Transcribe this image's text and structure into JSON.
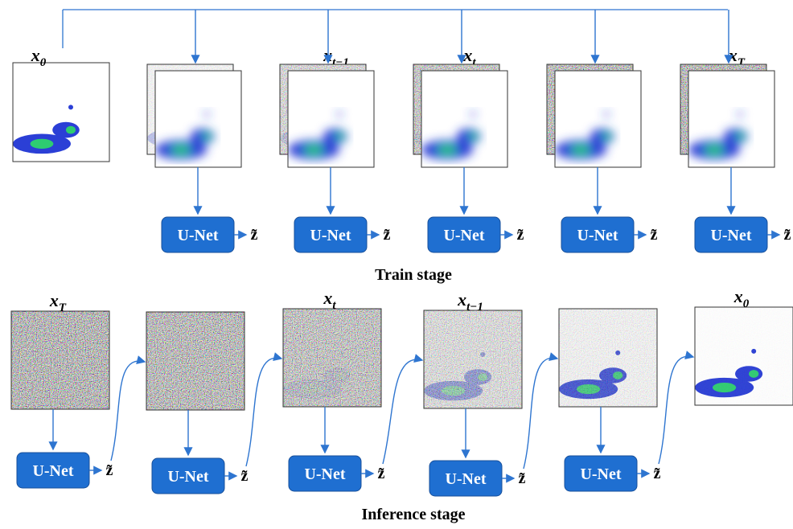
{
  "train": {
    "stage_label": "Train stage",
    "image_labels": [
      {
        "symbol": "x",
        "subscript": "0"
      },
      null,
      {
        "symbol": "x",
        "subscript": "t−1"
      },
      {
        "symbol": "x",
        "subscript": "t"
      },
      null,
      {
        "symbol": "x",
        "subscript": "T"
      }
    ],
    "units": [
      {
        "name": "U-Net",
        "output": "z̃"
      },
      {
        "name": "U-Net",
        "output": "z̃"
      },
      {
        "name": "U-Net",
        "output": "z̃"
      },
      {
        "name": "U-Net",
        "output": "z̃"
      },
      {
        "name": "U-Net",
        "output": "z̃"
      }
    ]
  },
  "inference": {
    "stage_label": "Inference stage",
    "image_labels": [
      {
        "symbol": "x",
        "subscript": "T"
      },
      null,
      {
        "symbol": "x",
        "subscript": "t"
      },
      {
        "symbol": "x",
        "subscript": "t−1"
      },
      null,
      {
        "symbol": "x",
        "subscript": "0"
      }
    ],
    "units": [
      {
        "name": "U-Net",
        "output": "z̃"
      },
      {
        "name": "U-Net",
        "output": "z̃"
      },
      {
        "name": "U-Net",
        "output": "z̃"
      },
      {
        "name": "U-Net",
        "output": "z̃"
      },
      {
        "name": "U-Net",
        "output": "z̃"
      }
    ]
  }
}
